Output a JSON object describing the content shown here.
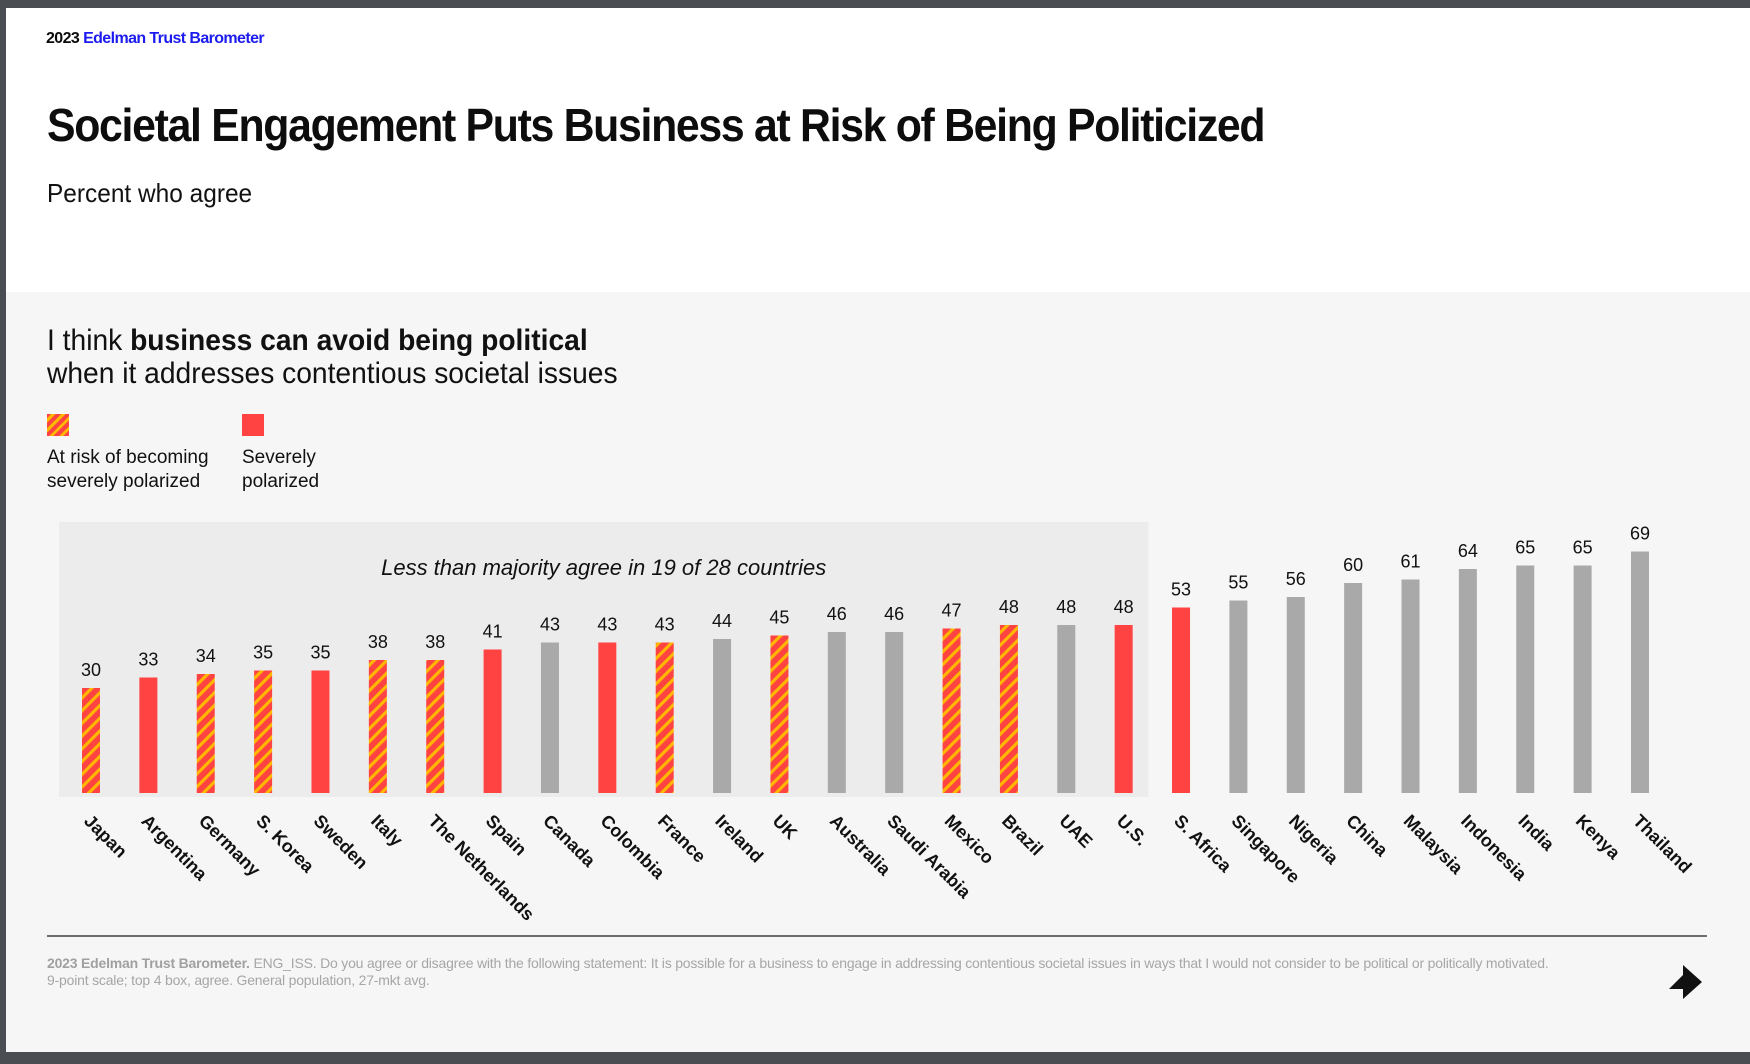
{
  "brand": {
    "year": "2023",
    "name": "Edelman Trust Barometer"
  },
  "title": "Societal Engagement Puts Business at Risk of Being Politicized",
  "subtitle": "Percent who agree",
  "question": {
    "prefix": "I think ",
    "bold": "business can avoid being political",
    "line2": "when it addresses contentious societal issues"
  },
  "legend": [
    {
      "key": "at_risk",
      "label_line1": "At risk of becoming",
      "label_line2": "severely polarized",
      "style": "striped"
    },
    {
      "key": "severe",
      "label_line1": "Severely",
      "label_line2": "polarized",
      "style": "solid"
    }
  ],
  "colors": {
    "severe": "#ff4242",
    "at_risk_stripe_a": "#ff4242",
    "at_risk_stripe_b": "#ffb700",
    "other": "#a9a9a9",
    "highlight_box": "#ececec"
  },
  "chart_data": {
    "type": "bar",
    "title": "I think business can avoid being political when it addresses contentious societal issues",
    "ylabel": "Percent who agree",
    "xlabel": "",
    "ylim": [
      0,
      100
    ],
    "grid": false,
    "annotation": "Less than majority agree in 19 of 28 countries",
    "annotation_span": {
      "from": "Japan",
      "to": "U.S."
    },
    "categories": [
      "Japan",
      "Argentina",
      "Germany",
      "S. Korea",
      "Sweden",
      "Italy",
      "The Netherlands",
      "Spain",
      "Canada",
      "Colombia",
      "France",
      "Ireland",
      "UK",
      "Australia",
      "Saudi Arabia",
      "Mexico",
      "Brazil",
      "UAE",
      "U.S.",
      "S. Africa",
      "Singapore",
      "Nigeria",
      "China",
      "Malaysia",
      "Indonesia",
      "India",
      "Kenya",
      "Thailand"
    ],
    "values": [
      30,
      33,
      34,
      35,
      35,
      38,
      38,
      41,
      43,
      43,
      43,
      44,
      45,
      46,
      46,
      47,
      48,
      48,
      48,
      53,
      55,
      56,
      60,
      61,
      64,
      65,
      65,
      69
    ],
    "status": [
      "at_risk",
      "severe",
      "at_risk",
      "at_risk",
      "severe",
      "at_risk",
      "at_risk",
      "severe",
      "other",
      "severe",
      "at_risk",
      "other",
      "at_risk",
      "other",
      "other",
      "at_risk",
      "at_risk",
      "other",
      "severe",
      "severe",
      "other",
      "other",
      "other",
      "other",
      "other",
      "other",
      "other",
      "other"
    ]
  },
  "footnote": {
    "bold": "2023 Edelman Trust Barometer.",
    "line1": " ENG_ISS. Do you agree or disagree with the following statement: It is possible for a business to engage in addressing contentious societal issues in ways that I would not consider to be political or politically motivated.",
    "line2": "9-point scale; top 4 box, agree. General population, 27-mkt avg."
  },
  "nav": {
    "next_icon": "next-arrow-icon"
  }
}
